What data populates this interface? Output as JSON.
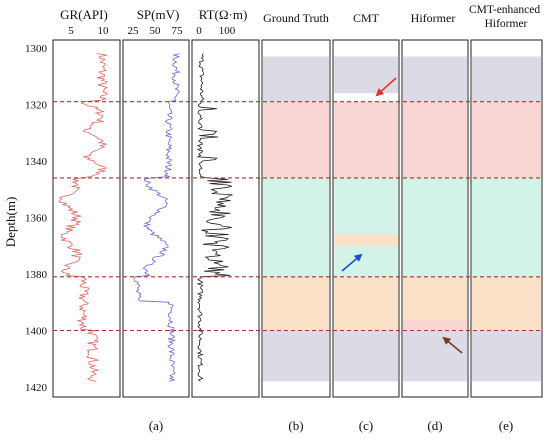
{
  "depth_axis": {
    "label": "Depth(m)",
    "ticks": [
      1300,
      1320,
      1340,
      1360,
      1380,
      1400,
      1420
    ]
  },
  "log_tracks": [
    {
      "id": "gr",
      "title": "GR(API)",
      "ticks": [
        "5",
        "10"
      ],
      "color": "#e06666"
    },
    {
      "id": "sp",
      "title": "SP(mV)",
      "ticks": [
        "25",
        "50",
        "75"
      ],
      "color": "#6a6ad8"
    },
    {
      "id": "rt",
      "title": "RT(Ω·m)",
      "ticks": [
        "0",
        "100"
      ],
      "color": "#222222"
    }
  ],
  "facies_columns": [
    {
      "title": "Ground Truth",
      "panel": "(b)"
    },
    {
      "title": "CMT",
      "panel": "(c)"
    },
    {
      "title": "Hiformer",
      "panel": "(d)"
    },
    {
      "title": "CMT-enhanced\nHiformer",
      "panel": "(e)"
    }
  ],
  "log_panel_label": "(a)",
  "facies_colors": {
    "gray": "#dcdbe5",
    "pink": "#f9d6d4",
    "green": "#d3f3e8",
    "orange": "#fae1c7"
  },
  "boundaries_depth": [
    1319,
    1346,
    1381,
    1400
  ],
  "boundary_color": "#a83232",
  "arrow_colors": {
    "red": "#e0312c",
    "blue": "#1f4fd0",
    "brown": "#7a3a25"
  }
}
